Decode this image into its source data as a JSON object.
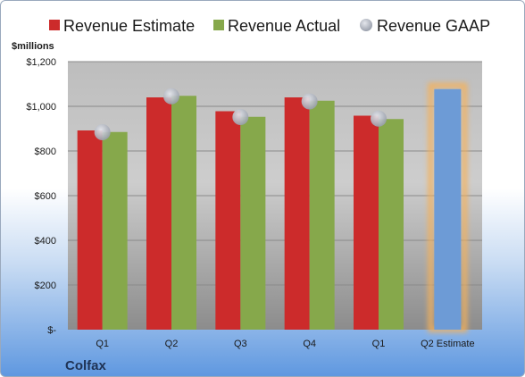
{
  "chart_data": {
    "type": "bar",
    "categories": [
      "Q1",
      "Q2",
      "Q3",
      "Q4",
      "Q1",
      "Q2 Estimate"
    ],
    "series": [
      {
        "name": "Revenue Estimate",
        "color": "#cc2b2b",
        "values": [
          892,
          1040,
          978,
          1040,
          958,
          null
        ]
      },
      {
        "name": "Revenue Actual",
        "color": "#86a84b",
        "values": [
          885,
          1047,
          953,
          1025,
          943,
          null
        ]
      },
      {
        "name": "Revenue GAAP",
        "color": "#b4b8c2",
        "values": [
          884,
          1045,
          952,
          1022,
          945,
          null
        ]
      }
    ],
    "forecast": {
      "category": "Q2 Estimate",
      "value": 1077,
      "color": "#6d9bd6",
      "glow_color": "#f5b15a"
    },
    "ylabel": "$millions",
    "ylim": [
      0,
      1200
    ],
    "yticks": [
      {
        "value": 0,
        "label": "$-"
      },
      {
        "value": 200,
        "label": "$200"
      },
      {
        "value": 400,
        "label": "$400"
      },
      {
        "value": 600,
        "label": "$600"
      },
      {
        "value": 800,
        "label": "$800"
      },
      {
        "value": 1000,
        "label": "$1,000"
      },
      {
        "value": 1200,
        "label": "$1,200"
      }
    ],
    "grid": true,
    "legend_position": "top",
    "company": "Colfax"
  }
}
